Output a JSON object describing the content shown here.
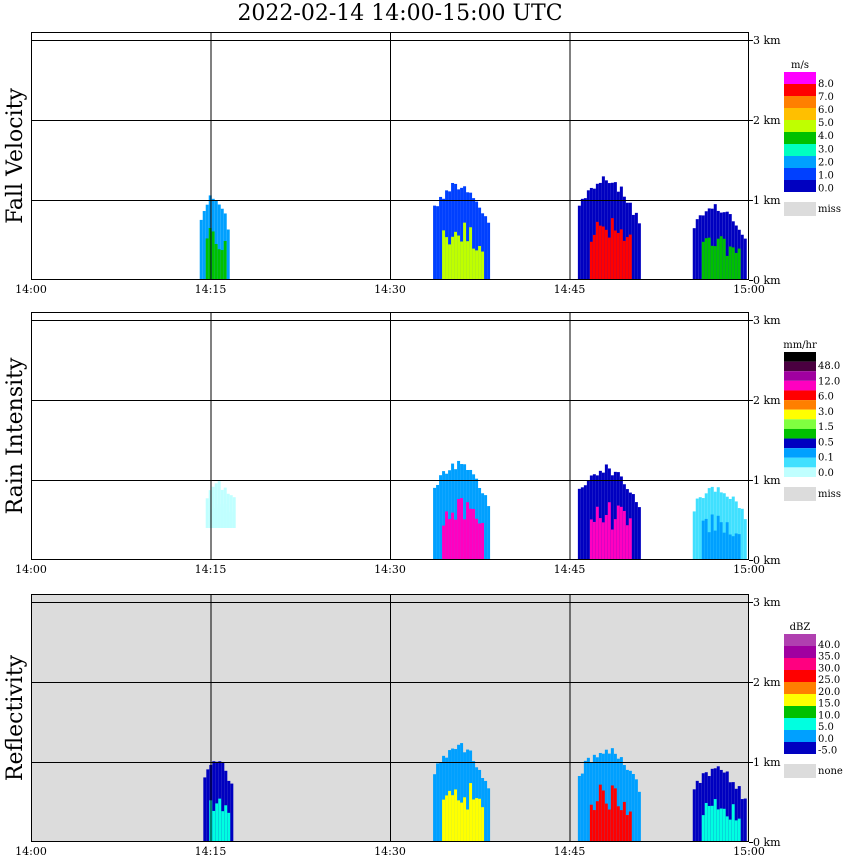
{
  "title": "2022-02-14  14:00-15:00 UTC",
  "chart_data": [
    {
      "type": "heatmap",
      "ylabel": "Fall Velocity",
      "xticks": [
        "14:00",
        "14:15",
        "14:30",
        "14:45",
        "15:00"
      ],
      "x_range_minutes": [
        0,
        60
      ],
      "yticks": [
        "0 km",
        "1 km",
        "2 km",
        "3 km"
      ],
      "ylim_km": [
        0,
        3.1
      ],
      "background": "#ffffff",
      "colorbar": {
        "unit": "m/s",
        "labels": [
          "8.0",
          "7.0",
          "6.0",
          "5.0",
          "4.0",
          "3.0",
          "2.0",
          "1.0",
          "0.0"
        ],
        "colors": [
          "#ff00ff",
          "#ff0000",
          "#ff7f00",
          "#ffbf00",
          "#bfff00",
          "#00c000",
          "#00ffc0",
          "#00a0ff",
          "#0040ff",
          "#0000c0"
        ],
        "miss_label": "miss"
      },
      "echoes": [
        {
          "t0": 14.1,
          "t1": 16.6,
          "h0": 0.0,
          "h1": 1.1,
          "top": "#00a0ff",
          "core": "#00c000"
        },
        {
          "t0": 33.6,
          "t1": 38.3,
          "h0": 0.0,
          "h1": 1.25,
          "top": "#0040ff",
          "core": "#bfff00"
        },
        {
          "t0": 45.7,
          "t1": 51.0,
          "h0": 0.0,
          "h1": 1.3,
          "top": "#0000c0",
          "core": "#ff0000"
        },
        {
          "t0": 55.3,
          "t1": 59.9,
          "h0": 0.0,
          "h1": 0.95,
          "top": "#0000c0",
          "core": "#00c000"
        }
      ]
    },
    {
      "type": "heatmap",
      "ylabel": "Rain Intensity",
      "xticks": [
        "14:00",
        "14:15",
        "14:30",
        "14:45",
        "15:00"
      ],
      "x_range_minutes": [
        0,
        60
      ],
      "yticks": [
        "0 km",
        "1 km",
        "2 km",
        "3 km"
      ],
      "ylim_km": [
        0,
        3.1
      ],
      "background": "#ffffff",
      "colorbar": {
        "unit": "mm/hr",
        "labels": [
          "48.0",
          "12.0",
          "6.0",
          "3.0",
          "1.5",
          "0.5",
          "0.1",
          "0.0"
        ],
        "colors": [
          "#000000",
          "#4a0040",
          "#a000a0",
          "#ff00c0",
          "#ff0000",
          "#ff7f00",
          "#ffff00",
          "#80ff40",
          "#00c000",
          "#0000c0",
          "#00a0ff",
          "#40e0ff",
          "#c0ffff"
        ],
        "miss_label": "miss"
      },
      "echoes": [
        {
          "t0": 14.6,
          "t1": 17.0,
          "h0": 0.4,
          "h1": 1.0,
          "top": "#c0ffff",
          "core": "#c0ffff"
        },
        {
          "t0": 33.6,
          "t1": 38.3,
          "h0": 0.0,
          "h1": 1.25,
          "top": "#00a0ff",
          "core": "#ff00c0"
        },
        {
          "t0": 45.7,
          "t1": 51.0,
          "h0": 0.0,
          "h1": 1.2,
          "top": "#0000c0",
          "core": "#ff00c0"
        },
        {
          "t0": 55.3,
          "t1": 59.9,
          "h0": 0.0,
          "h1": 0.95,
          "top": "#40e0ff",
          "core": "#00a0ff"
        }
      ]
    },
    {
      "type": "heatmap",
      "ylabel": "Reflectivity",
      "xticks": [
        "14:00",
        "14:15",
        "14:30",
        "14:45",
        "15:00"
      ],
      "x_range_minutes": [
        0,
        60
      ],
      "yticks": [
        "0 km",
        "1 km",
        "2 km",
        "3 km"
      ],
      "ylim_km": [
        0,
        3.1
      ],
      "background": "#dcdcdc",
      "colorbar": {
        "unit": "dBZ",
        "labels": [
          "40.0",
          "35.0",
          "30.0",
          "25.0",
          "20.0",
          "15.0",
          "10.0",
          "5.0",
          "0.0",
          "-5.0"
        ],
        "colors": [
          "#b040b0",
          "#a000a0",
          "#ff0080",
          "#ff0000",
          "#ff7f00",
          "#ffff00",
          "#00c000",
          "#00ffe0",
          "#00a0ff",
          "#0000c0"
        ],
        "miss_label": "none"
      },
      "echoes": [
        {
          "t0": 14.4,
          "t1": 16.8,
          "h0": 0.0,
          "h1": 1.1,
          "top": "#0000c0",
          "core": "#00ffe0"
        },
        {
          "t0": 33.6,
          "t1": 38.3,
          "h0": 0.0,
          "h1": 1.25,
          "top": "#00a0ff",
          "core": "#ffff00"
        },
        {
          "t0": 45.7,
          "t1": 51.0,
          "h0": 0.0,
          "h1": 1.2,
          "top": "#00a0ff",
          "core": "#ff0000"
        },
        {
          "t0": 55.3,
          "t1": 59.9,
          "h0": 0.0,
          "h1": 0.95,
          "top": "#0000c0",
          "core": "#00ffe0"
        }
      ]
    }
  ]
}
